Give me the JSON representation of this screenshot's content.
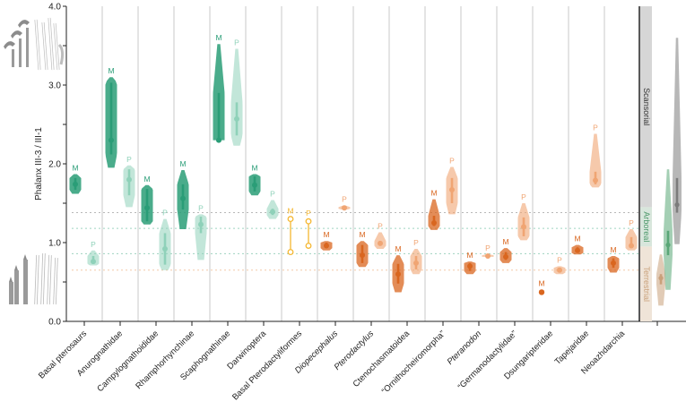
{
  "chart_data": {
    "type": "violin",
    "title": "",
    "ylabel": "Phalanx III-3 / III-1",
    "xlabel": "",
    "ylim": [
      0.0,
      4.0
    ],
    "yticks": [
      {
        "value": 0.0,
        "label": "0.0"
      },
      {
        "value": 0.5,
        "label": ""
      },
      {
        "value": 1.0,
        "label": "1.0"
      },
      {
        "value": 1.5,
        "label": ""
      },
      {
        "value": 2.0,
        "label": "2.0"
      },
      {
        "value": 2.5,
        "label": ""
      },
      {
        "value": 3.0,
        "label": "3.0"
      },
      {
        "value": 3.5,
        "label": ""
      },
      {
        "value": 4.0,
        "label": "4.0"
      }
    ],
    "grid": false,
    "colors": {
      "green_dark": "#2a9d77",
      "green_light": "#8fd1b9",
      "yellow": "#f5b731",
      "orange_dark": "#d9661f",
      "orange_light": "#f0a573",
      "scansorial": "#7c7c7c",
      "arboreal": "#5aa777",
      "terrestrial": "#c9a07a",
      "axis": "#222222",
      "divider": "#c8c8c8"
    },
    "reference_lines": [
      {
        "value": 1.38,
        "color": "#b8b8b8"
      },
      {
        "value": 1.18,
        "color": "#9fd3c0"
      },
      {
        "value": 0.86,
        "color": "#9fd3c0"
      },
      {
        "value": 0.65,
        "color": "#f3c9a8"
      }
    ],
    "categories": [
      "Basal pterosaurs",
      "Anurognathidae",
      "Campylognathoididae",
      "Rhamphorhynchinae",
      "Scaphognathinae",
      "Darwinoptera",
      "Basal Pterodactyliformes",
      "Diopecephalus",
      "Pterodactylus",
      "Ctenochasmatoidea",
      "“Ornithocheiromorpha”",
      "Pteranodon",
      "“Germanodactylidae”",
      "Dsungaripteridae",
      "Tapejaridae",
      "Neoazhdarchia"
    ],
    "italic_categories": [
      "Diopecephalus",
      "Pterodactylus",
      "Pteranodon"
    ],
    "series": [
      {
        "name": "M",
        "label": "M",
        "values": [
          {
            "cat": 0,
            "min": 1.62,
            "q1": 1.67,
            "median": 1.74,
            "q3": 1.82,
            "max": 1.87,
            "style": "green_dark"
          },
          {
            "cat": 1,
            "min": 1.95,
            "q1": 2.12,
            "median": 2.3,
            "q3": 3.03,
            "max": 3.1,
            "style": "green_dark"
          },
          {
            "cat": 2,
            "min": 1.23,
            "q1": 1.27,
            "median": 1.44,
            "q3": 1.68,
            "max": 1.73,
            "style": "green_dark"
          },
          {
            "cat": 3,
            "min": 1.17,
            "q1": 1.42,
            "median": 1.56,
            "q3": 1.74,
            "max": 1.92,
            "style": "green_dark"
          },
          {
            "cat": 4,
            "min": 2.3,
            "q1": 2.3,
            "median": 2.3,
            "q3": 2.9,
            "max": 3.52,
            "style": "green_dark"
          },
          {
            "cat": 5,
            "min": 1.6,
            "q1": 1.65,
            "median": 1.73,
            "q3": 1.84,
            "max": 1.87,
            "style": "green_dark"
          },
          {
            "cat": 6,
            "min": 0.88,
            "q1": 0.88,
            "median": 1.09,
            "q3": 1.3,
            "max": 1.3,
            "style": "yellow_points"
          },
          {
            "cat": 7,
            "min": 0.9,
            "q1": 0.93,
            "median": 0.96,
            "q3": 1.0,
            "max": 1.02,
            "style": "orange_dark"
          },
          {
            "cat": 8,
            "min": 0.69,
            "q1": 0.74,
            "median": 0.84,
            "q3": 0.97,
            "max": 1.02,
            "style": "orange_dark"
          },
          {
            "cat": 9,
            "min": 0.37,
            "q1": 0.48,
            "median": 0.6,
            "q3": 0.73,
            "max": 0.84,
            "style": "orange_dark"
          },
          {
            "cat": 10,
            "min": 1.16,
            "q1": 1.21,
            "median": 1.25,
            "q3": 1.34,
            "max": 1.55,
            "style": "orange_dark"
          },
          {
            "cat": 11,
            "min": 0.6,
            "q1": 0.64,
            "median": 0.7,
            "q3": 0.74,
            "max": 0.76,
            "style": "orange_dark"
          },
          {
            "cat": 12,
            "min": 0.74,
            "q1": 0.78,
            "median": 0.82,
            "q3": 0.88,
            "max": 0.93,
            "style": "orange_dark"
          },
          {
            "cat": 13,
            "min": 0.37,
            "q1": 0.37,
            "median": 0.37,
            "q3": 0.37,
            "max": 0.37,
            "style": "orange_point"
          },
          {
            "cat": 14,
            "min": 0.85,
            "q1": 0.87,
            "median": 0.9,
            "q3": 0.94,
            "max": 0.97,
            "style": "orange_dark"
          },
          {
            "cat": 15,
            "min": 0.62,
            "q1": 0.68,
            "median": 0.74,
            "q3": 0.8,
            "max": 0.83,
            "style": "orange_dark"
          }
        ]
      },
      {
        "name": "P",
        "label": "P",
        "values": [
          {
            "cat": 0,
            "min": 0.71,
            "q1": 0.73,
            "median": 0.76,
            "q3": 0.83,
            "max": 0.9,
            "style": "green_light"
          },
          {
            "cat": 1,
            "min": 1.45,
            "q1": 1.6,
            "median": 1.8,
            "q3": 1.93,
            "max": 1.98,
            "style": "green_light"
          },
          {
            "cat": 2,
            "min": 0.65,
            "q1": 0.72,
            "median": 0.92,
            "q3": 1.12,
            "max": 1.3,
            "style": "green_light"
          },
          {
            "cat": 3,
            "min": 0.78,
            "q1": 1.12,
            "median": 1.23,
            "q3": 1.33,
            "max": 1.36,
            "style": "green_light"
          },
          {
            "cat": 4,
            "min": 2.23,
            "q1": 2.36,
            "median": 2.57,
            "q3": 2.78,
            "max": 3.46,
            "style": "green_light"
          },
          {
            "cat": 5,
            "min": 1.3,
            "q1": 1.35,
            "median": 1.39,
            "q3": 1.43,
            "max": 1.54,
            "style": "green_light"
          },
          {
            "cat": 6,
            "min": 0.96,
            "q1": 0.96,
            "median": 1.12,
            "q3": 1.27,
            "max": 1.27,
            "style": "yellow_points"
          },
          {
            "cat": 7,
            "min": 1.42,
            "q1": 1.43,
            "median": 1.44,
            "q3": 1.45,
            "max": 1.47,
            "style": "orange_light"
          },
          {
            "cat": 8,
            "min": 0.92,
            "q1": 0.96,
            "median": 0.99,
            "q3": 1.02,
            "max": 1.13,
            "style": "orange_light"
          },
          {
            "cat": 9,
            "min": 0.6,
            "q1": 0.66,
            "median": 0.74,
            "q3": 0.83,
            "max": 0.92,
            "style": "orange_light"
          },
          {
            "cat": 10,
            "min": 1.36,
            "q1": 1.5,
            "median": 1.67,
            "q3": 1.82,
            "max": 1.96,
            "style": "orange_light"
          },
          {
            "cat": 11,
            "min": 0.82,
            "q1": 0.82,
            "median": 0.83,
            "q3": 0.84,
            "max": 0.85,
            "style": "orange_light"
          },
          {
            "cat": 12,
            "min": 1.03,
            "q1": 1.08,
            "median": 1.2,
            "q3": 1.32,
            "max": 1.5,
            "style": "orange_light"
          },
          {
            "cat": 13,
            "min": 0.6,
            "q1": 0.62,
            "median": 0.65,
            "q3": 0.68,
            "max": 0.7,
            "style": "orange_light"
          },
          {
            "cat": 14,
            "min": 1.7,
            "q1": 1.74,
            "median": 1.79,
            "q3": 1.9,
            "max": 2.38,
            "style": "orange_light"
          },
          {
            "cat": 15,
            "min": 0.9,
            "q1": 0.93,
            "median": 0.96,
            "q3": 1.07,
            "max": 1.17,
            "style": "orange_light"
          }
        ]
      }
    ],
    "ecology_reference": {
      "bands": [
        {
          "label": "Scansorial",
          "from": 1.45,
          "to": 4.0,
          "color": "#d6d6d6",
          "text_color": "#333333"
        },
        {
          "label": "Arboreal",
          "from": 0.95,
          "to": 1.45,
          "color": "#d8e6dc",
          "text_color": "#4f9a6c"
        },
        {
          "label": "Terrestrial",
          "from": 0.0,
          "to": 0.95,
          "color": "#efe4d8",
          "text_color": "#c9a07a"
        }
      ],
      "violins": [
        {
          "name": "Terrestrial",
          "min": 0.2,
          "q1": 0.47,
          "median": 0.55,
          "q3": 0.6,
          "max": 0.85,
          "color": "#c9a07a"
        },
        {
          "name": "Arboreal",
          "min": 0.4,
          "q1": 0.84,
          "median": 0.97,
          "q3": 1.15,
          "max": 1.93,
          "color": "#5aa777"
        },
        {
          "name": "Scansorial",
          "min": 0.98,
          "q1": 1.38,
          "median": 1.48,
          "q3": 1.82,
          "max": 3.6,
          "color": "#7c7c7c"
        }
      ]
    },
    "illustrations": [
      {
        "name": "scansorial-hand-illustration",
        "position": "top-left"
      },
      {
        "name": "terrestrial-hand-illustration",
        "position": "bottom-left"
      }
    ]
  }
}
